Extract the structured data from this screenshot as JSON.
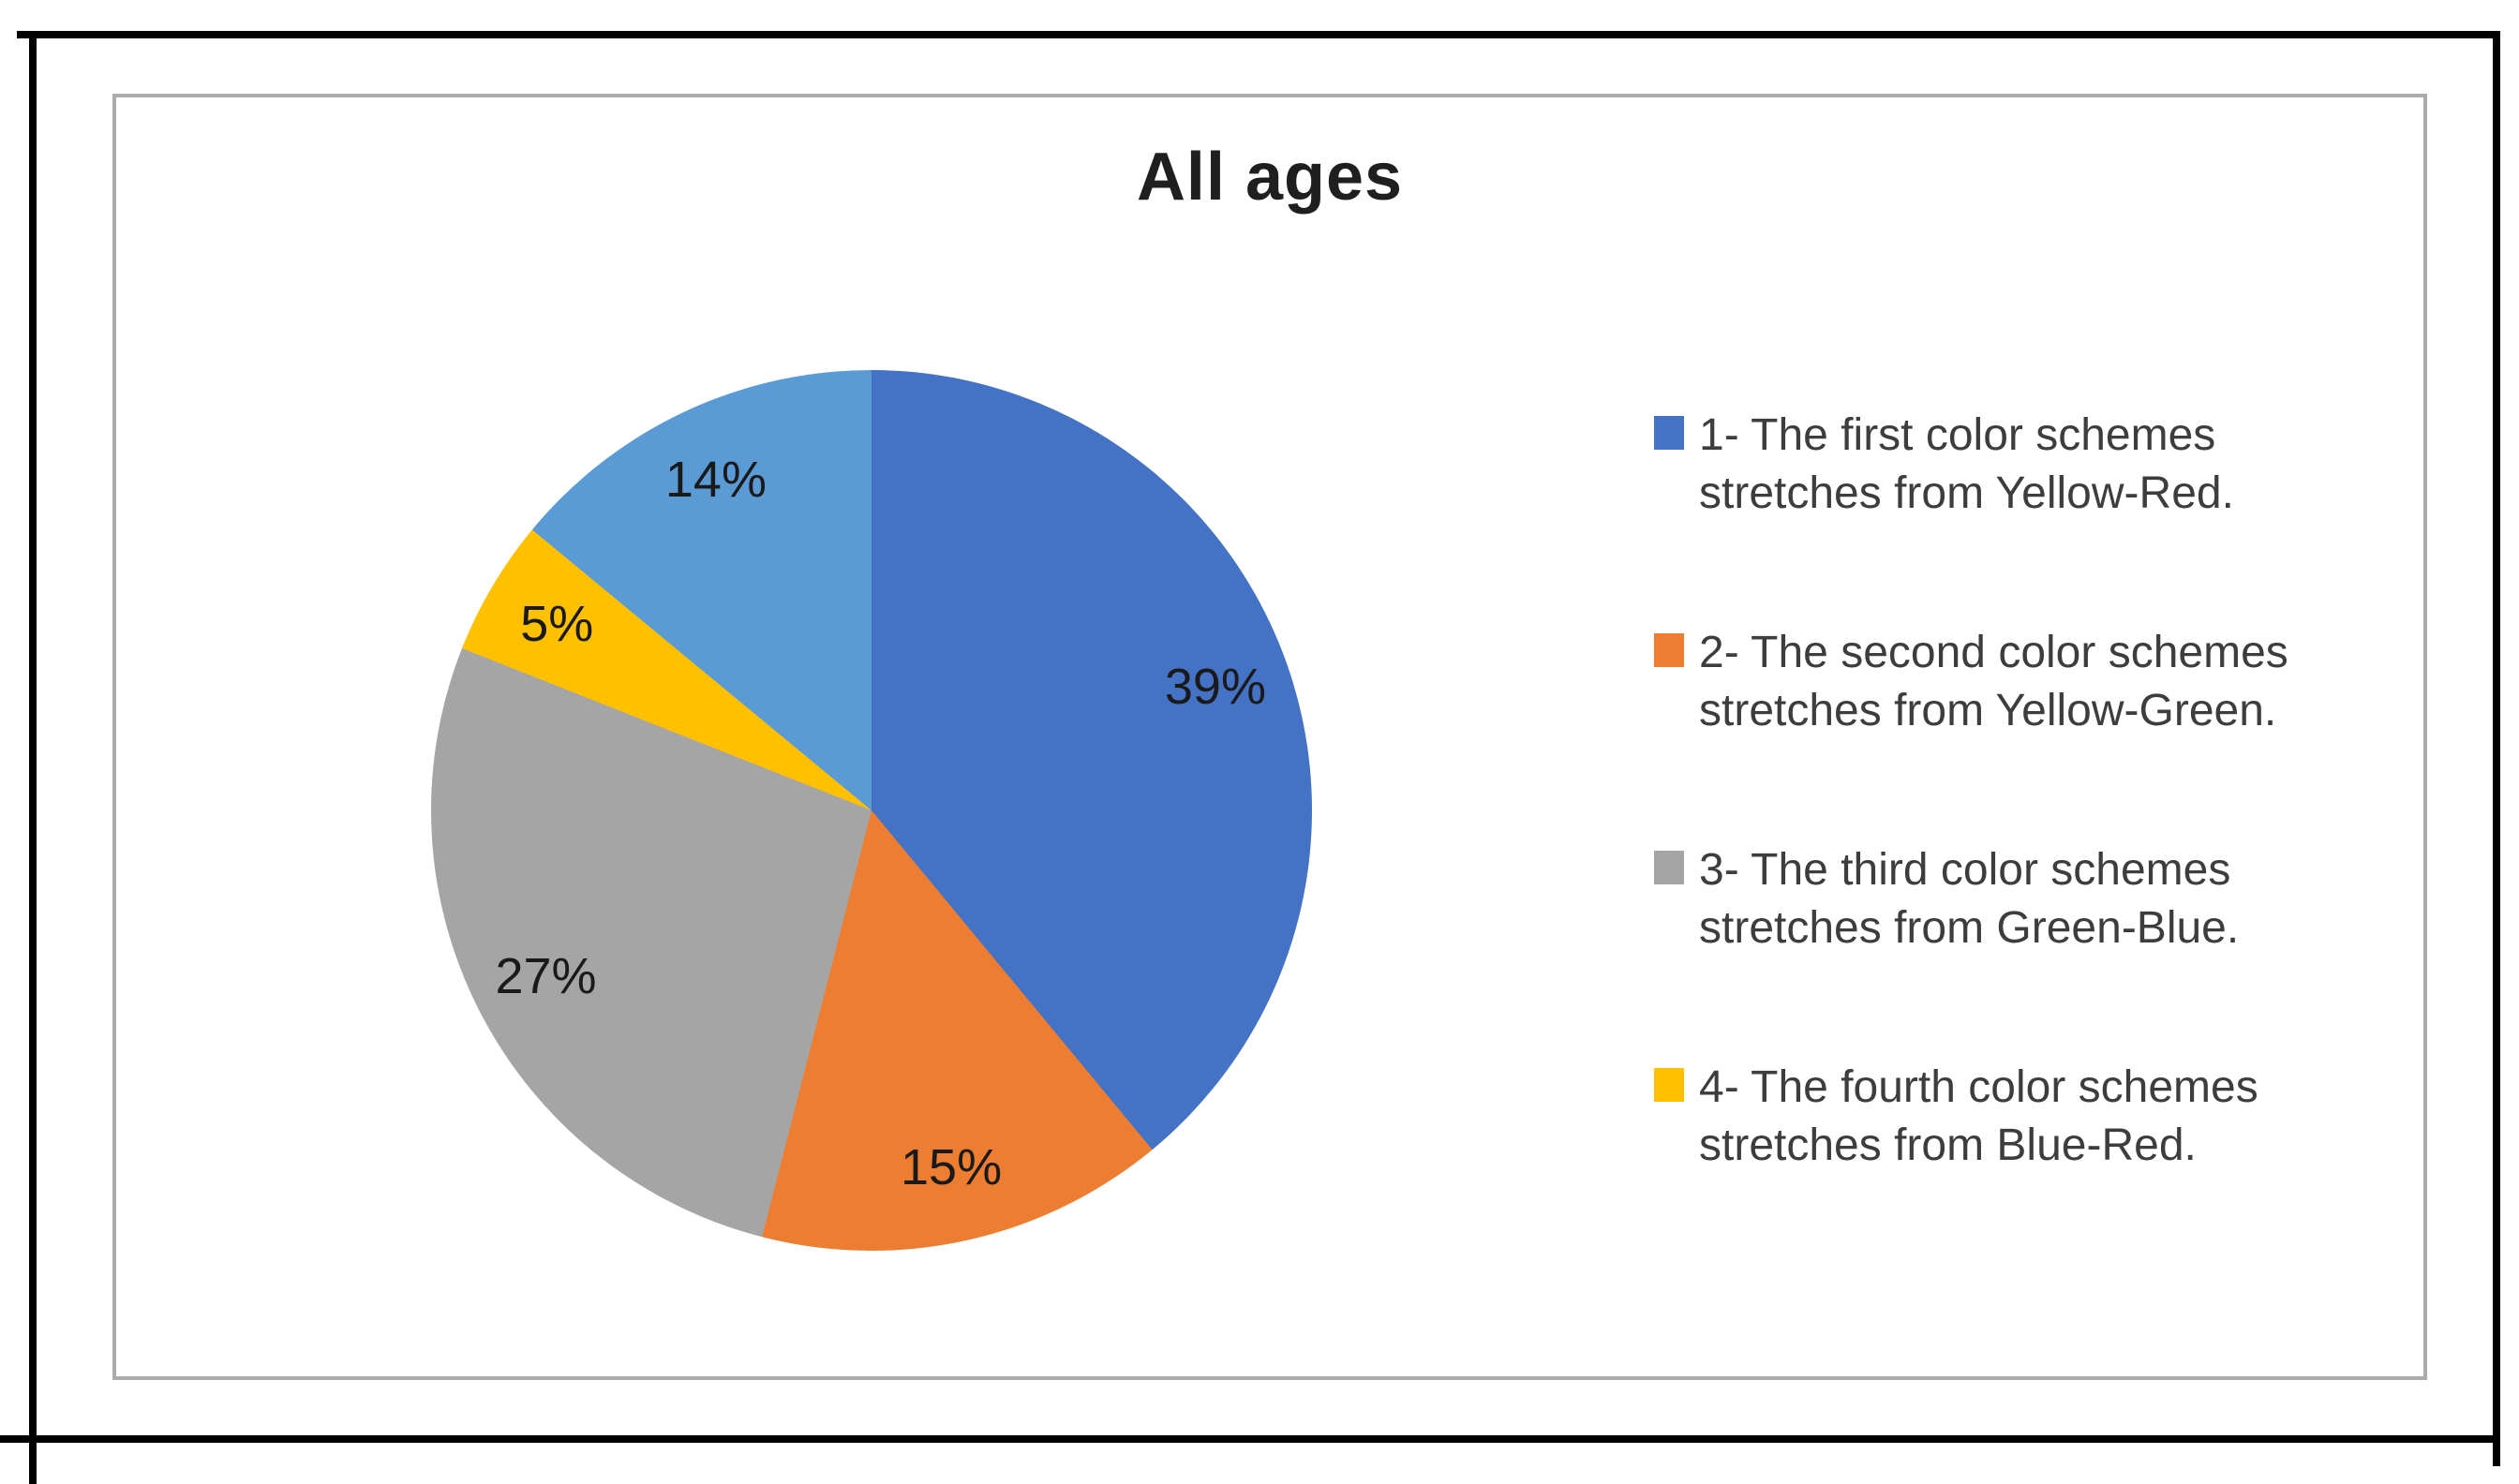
{
  "chart_data": {
    "type": "pie",
    "title": "All ages",
    "start_angle_deg": 0,
    "direction": "clockwise",
    "legend_position": "right",
    "slices": [
      {
        "value": 39,
        "label": "39%",
        "color": "#4472C4"
      },
      {
        "value": 15,
        "label": "15%",
        "color": "#ED7D31"
      },
      {
        "value": 27,
        "label": "27%",
        "color": "#A5A5A5"
      },
      {
        "value": 5,
        "label": "5%",
        "color": "#FFC000"
      },
      {
        "value": 14,
        "label": "14%",
        "color": "#5B9BD5"
      }
    ],
    "legend": [
      {
        "marker_color": "#4472C4",
        "text": "1- The first color schemes stretches from Yellow-Red."
      },
      {
        "marker_color": "#ED7D31",
        "text": "2- The second color schemes stretches from Yellow-Green."
      },
      {
        "marker_color": "#A5A5A5",
        "text": "3- The third color schemes stretches from Green-Blue."
      },
      {
        "marker_color": "#FFC000",
        "text": "4- The fourth color schemes stretches from Blue-Red."
      }
    ]
  },
  "frame": {
    "chart_border_color": "#ABABAB",
    "table_rule_color": "#000000"
  }
}
